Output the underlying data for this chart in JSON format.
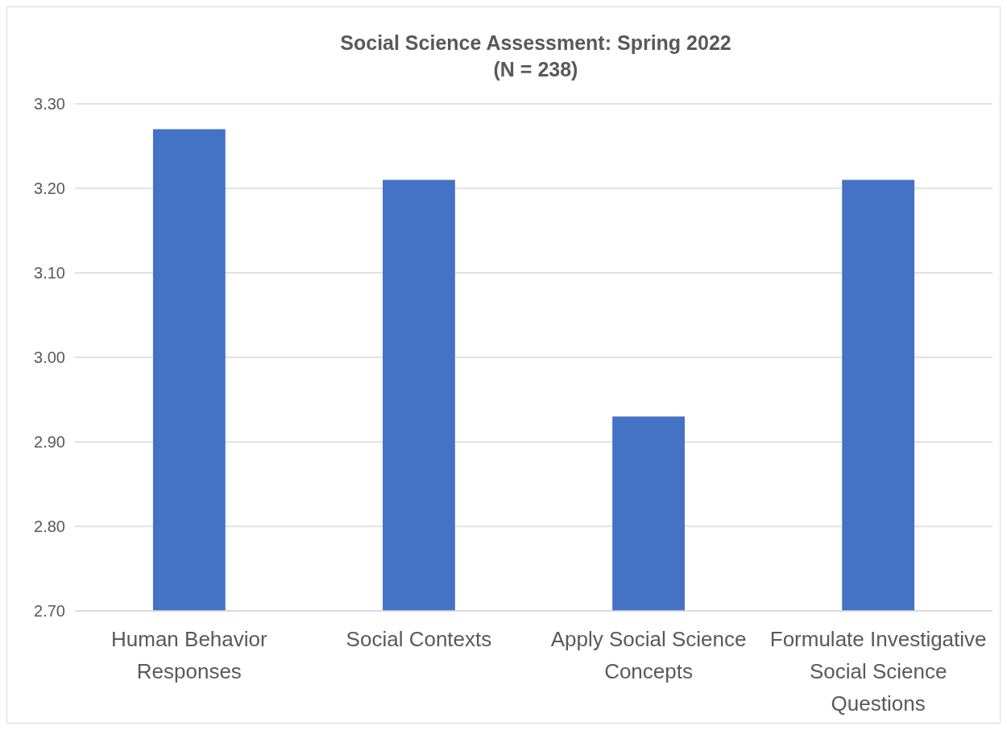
{
  "chart_data": {
    "type": "bar",
    "title": "Social Science Assessment: Spring 2022\n(N = 238)",
    "categories": [
      "Human Behavior Responses",
      "Social Contexts",
      "Apply Social Science Concepts",
      "Formulate Investigative Social Science Questions"
    ],
    "values": [
      3.27,
      3.21,
      2.93,
      3.21
    ],
    "color": "#4472c4",
    "ylim": [
      2.7,
      3.3
    ],
    "yticks": [
      {
        "value": 2.7,
        "label": "2.70"
      },
      {
        "value": 2.8,
        "label": "2.80"
      },
      {
        "value": 2.9,
        "label": "2.90"
      },
      {
        "value": 3.0,
        "label": "3.00"
      },
      {
        "value": 3.1,
        "label": "3.10"
      },
      {
        "value": 3.2,
        "label": "3.20"
      },
      {
        "value": 3.3,
        "label": "3.30"
      }
    ],
    "grid": "y"
  }
}
